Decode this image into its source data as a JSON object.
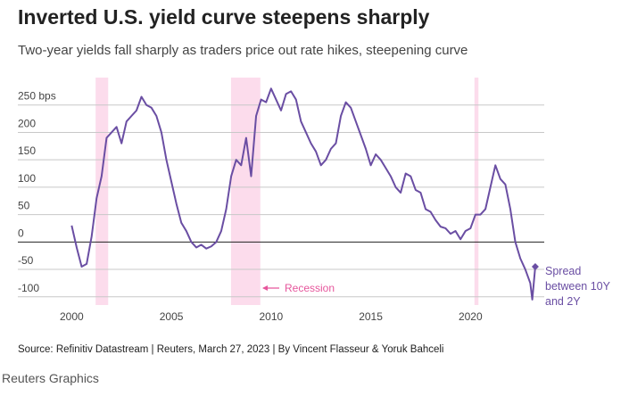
{
  "chart_data": {
    "type": "line",
    "title": "Inverted U.S. yield curve steepens sharply",
    "subtitle": "Two-year yields fall sharply as traders price out rate hikes, steepening curve",
    "source": "Source: Refinitiv Datastream | Reuters, March 27, 2023 | By Vincent Flasseur & Yoruk Bahceli",
    "credit": "Reuters Graphics",
    "annotations": [
      {
        "text": "Recession"
      }
    ],
    "recessions": [
      [
        2001.2,
        2001.83
      ],
      [
        2007.99,
        2009.46
      ],
      [
        2020.2,
        2020.4
      ]
    ],
    "recession_color": "#fcdcec",
    "xlim": [
      1997.3,
      2023.7
    ],
    "xticks": [
      2000,
      2005,
      2010,
      2015,
      2020
    ],
    "ylim": [
      -115,
      300
    ],
    "yticks": [
      -100,
      -50,
      0,
      50,
      100,
      150,
      200,
      {
        "value": 250,
        "label": "250 bps"
      }
    ],
    "grid": true,
    "series": [
      {
        "name": "Spread between 10Y and 2Y",
        "color": "#6a4ea3",
        "x": [
          2000.0,
          2000.25,
          2000.5,
          2000.75,
          2001.0,
          2001.25,
          2001.5,
          2001.75,
          2002.0,
          2002.25,
          2002.5,
          2002.75,
          2003.0,
          2003.25,
          2003.5,
          2003.75,
          2004.0,
          2004.25,
          2004.5,
          2004.75,
          2005.0,
          2005.25,
          2005.5,
          2005.75,
          2006.0,
          2006.25,
          2006.5,
          2006.75,
          2007.0,
          2007.25,
          2007.5,
          2007.75,
          2008.0,
          2008.25,
          2008.5,
          2008.75,
          2009.0,
          2009.25,
          2009.5,
          2009.75,
          2010.0,
          2010.25,
          2010.5,
          2010.75,
          2011.0,
          2011.25,
          2011.5,
          2011.75,
          2012.0,
          2012.25,
          2012.5,
          2012.75,
          2013.0,
          2013.25,
          2013.5,
          2013.75,
          2014.0,
          2014.25,
          2014.5,
          2014.75,
          2015.0,
          2015.25,
          2015.5,
          2015.75,
          2016.0,
          2016.25,
          2016.5,
          2016.75,
          2017.0,
          2017.25,
          2017.5,
          2017.75,
          2018.0,
          2018.25,
          2018.5,
          2018.75,
          2019.0,
          2019.25,
          2019.5,
          2019.75,
          2020.0,
          2020.25,
          2020.5,
          2020.75,
          2021.0,
          2021.25,
          2021.5,
          2021.75,
          2022.0,
          2022.25,
          2022.5,
          2022.75,
          2023.0,
          2023.1,
          2023.25
        ],
        "values": [
          30,
          -10,
          -45,
          -40,
          10,
          80,
          120,
          190,
          200,
          210,
          180,
          220,
          230,
          240,
          265,
          250,
          245,
          230,
          200,
          150,
          110,
          70,
          35,
          20,
          0,
          -10,
          -5,
          -12,
          -8,
          0,
          20,
          60,
          120,
          150,
          140,
          190,
          120,
          230,
          260,
          255,
          280,
          260,
          240,
          270,
          275,
          260,
          220,
          200,
          180,
          165,
          140,
          150,
          170,
          180,
          230,
          255,
          245,
          220,
          195,
          170,
          140,
          160,
          150,
          135,
          120,
          100,
          90,
          125,
          120,
          95,
          90,
          60,
          55,
          40,
          28,
          25,
          15,
          20,
          5,
          20,
          25,
          50,
          50,
          60,
          100,
          140,
          115,
          105,
          60,
          0,
          -30,
          -50,
          -75,
          -105,
          -45
        ]
      }
    ]
  }
}
